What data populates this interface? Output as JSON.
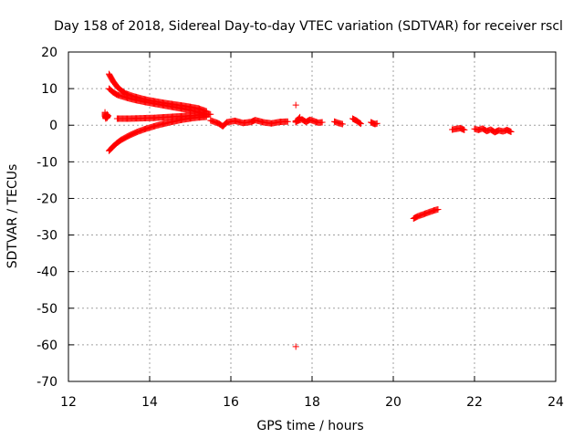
{
  "chart_data": {
    "type": "scatter",
    "title": "Day 158 of 2018, Sidereal Day-to-day VTEC variation (SDTVAR) for receiver rscl",
    "xlabel": "GPS time / hours",
    "ylabel": "SDTVAR / TECUs",
    "xlim": [
      12,
      24
    ],
    "ylim": [
      -70,
      20
    ],
    "x_ticks": [
      12,
      14,
      16,
      18,
      20,
      22,
      24
    ],
    "y_ticks": [
      -70,
      -60,
      -50,
      -40,
      -30,
      -20,
      -10,
      0,
      10,
      20
    ],
    "grid": true,
    "marker": "+",
    "color": "#ff0000",
    "series": [
      {
        "name": "SDTVAR",
        "segments": [
          {
            "label": "arc-upper-1",
            "x": [
              13.0,
              13.1,
              13.2,
              13.3,
              13.4,
              13.6,
              13.8,
              14.0,
              14.3,
              14.6,
              14.9,
              15.2,
              15.4
            ],
            "y": [
              14.0,
              12.0,
              10.5,
              9.5,
              8.7,
              7.9,
              7.3,
              6.8,
              6.2,
              5.7,
              5.2,
              4.6,
              3.8
            ]
          },
          {
            "label": "arc-upper-2",
            "x": [
              13.0,
              13.1,
              13.2,
              13.4,
              13.6,
              13.9,
              14.2,
              14.5,
              14.8,
              15.1,
              15.4
            ],
            "y": [
              10.0,
              9.0,
              8.3,
              7.6,
              7.0,
              6.3,
              5.7,
              5.1,
              4.5,
              3.8,
              3.0
            ]
          },
          {
            "label": "arc-lower",
            "x": [
              13.0,
              13.1,
              13.2,
              13.3,
              13.5,
              13.7,
              13.9,
              14.2,
              14.5,
              14.8,
              15.1,
              15.4
            ],
            "y": [
              -7.0,
              -5.8,
              -4.8,
              -4.0,
              -2.8,
              -1.8,
              -1.0,
              0.0,
              0.8,
              1.5,
              2.0,
              2.3
            ]
          },
          {
            "label": "arc-middle",
            "x": [
              13.2,
              13.5,
              13.8,
              14.1,
              14.4,
              14.7,
              15.0,
              15.3,
              15.5
            ],
            "y": [
              1.8,
              1.8,
              1.9,
              2.0,
              2.2,
              2.4,
              2.6,
              2.8,
              3.0
            ]
          },
          {
            "label": "cluster-12.9",
            "x": [
              12.9,
              12.9,
              12.92,
              12.95,
              12.95,
              12.98
            ],
            "y": [
              3.5,
              2.5,
              1.8,
              3.0,
              2.0,
              2.6
            ]
          },
          {
            "label": "band-15.5-17.5",
            "x": [
              15.5,
              15.7,
              15.8,
              15.9,
              16.1,
              16.3,
              16.5,
              16.6,
              16.8,
              17.0,
              17.2,
              17.4
            ],
            "y": [
              1.3,
              0.5,
              -0.3,
              0.8,
              1.2,
              0.6,
              0.9,
              1.4,
              0.8,
              0.5,
              0.9,
              1.0
            ]
          },
          {
            "label": "cluster-17.6-18.3",
            "x": [
              17.6,
              17.75,
              17.85,
              17.95,
              18.05,
              18.15,
              18.25
            ],
            "y": [
              1.0,
              1.6,
              0.9,
              1.5,
              1.1,
              0.7,
              0.8
            ]
          },
          {
            "label": "cluster-18.6",
            "x": [
              18.55,
              18.65,
              18.75
            ],
            "y": [
              1.0,
              0.6,
              0.3
            ]
          },
          {
            "label": "cluster-19.1",
            "x": [
              19.0,
              19.1,
              19.2
            ],
            "y": [
              1.8,
              1.2,
              0.4
            ]
          },
          {
            "label": "cluster-19.5",
            "x": [
              19.45,
              19.55,
              19.6
            ],
            "y": [
              0.8,
              0.3,
              0.5
            ]
          },
          {
            "label": "arc-20.5-21.1",
            "x": [
              20.5,
              20.6,
              20.7,
              20.8,
              20.9,
              21.0,
              21.1
            ],
            "y": [
              -25.5,
              -24.9,
              -24.5,
              -24.1,
              -23.7,
              -23.3,
              -23.0
            ]
          },
          {
            "label": "cluster-21.6",
            "x": [
              21.45,
              21.55,
              21.65,
              21.75
            ],
            "y": [
              -1.2,
              -1.0,
              -0.8,
              -1.3
            ]
          },
          {
            "label": "band-22-23",
            "x": [
              22.0,
              22.1,
              22.2,
              22.3,
              22.4,
              22.5,
              22.6,
              22.7,
              22.8,
              22.9
            ],
            "y": [
              -1.0,
              -1.3,
              -0.9,
              -1.6,
              -1.2,
              -1.9,
              -1.4,
              -1.7,
              -1.3,
              -1.8
            ]
          },
          {
            "label": "outlier-high",
            "x": [
              17.6
            ],
            "y": [
              5.5
            ]
          },
          {
            "label": "outlier-mid",
            "x": [
              17.6,
              17.6,
              17.7
            ],
            "y": [
              1.2,
              0.8,
              2.2
            ]
          },
          {
            "label": "outlier-low",
            "x": [
              17.6
            ],
            "y": [
              -60.5
            ]
          }
        ]
      }
    ]
  }
}
